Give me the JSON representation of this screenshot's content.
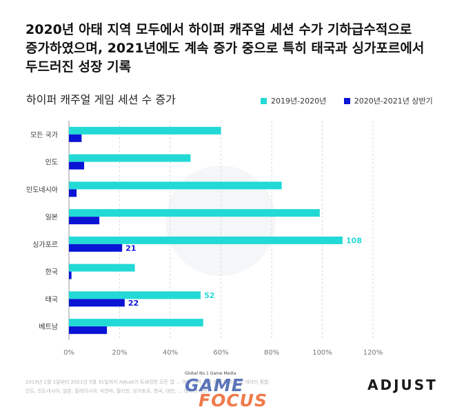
{
  "headline": {
    "line1": "2020년 아태 지역 모두에서 하이퍼 캐주얼 세션 수가 기하급수적으로",
    "line2": "증가하였으며, 2021년에도 계속 증가 중으로 특히 태국과 싱가포르에서",
    "line3": "두드러진 성장 기록"
  },
  "footnote": {
    "line1": "2019년 1월 1일부터 2021년 5월 31일까지 Adjust가 트래킹한 모든 앱 ... 아태 지역 기반 상위 910개 앱 데이터 종합.",
    "line2": "인도, 인도네시아, 일본, 말레이시아, 미얀마, 필리핀, 싱가포르, 한국, 대만, ... 데이터 기반."
  },
  "watermark": {
    "tagline": "Global No.1 Game Media",
    "word1": "GAME",
    "word2": "FOCUS"
  },
  "brand": "ADJUST",
  "colors": {
    "series1": "#22d9d6",
    "series2": "#0a14d4",
    "grid": "#d9d9d9",
    "axis": "#999999"
  },
  "chart_data": {
    "type": "bar",
    "orientation": "horizontal",
    "title": "하이퍼 캐주얼 게임 세션 수 증가",
    "categories": [
      "모든 국가",
      "인도",
      "인도네시아",
      "일본",
      "싱가포르",
      "한국",
      "태국",
      "베트남"
    ],
    "series": [
      {
        "name": "2019년-2020년",
        "values": [
          60,
          48,
          84,
          99,
          108,
          26,
          52,
          53
        ]
      },
      {
        "name": "2020년-2021년 상반기",
        "values": [
          5,
          6,
          3,
          12,
          21,
          1,
          22,
          15
        ]
      }
    ],
    "data_labels": [
      {
        "series": 0,
        "category": 4,
        "text": "108"
      },
      {
        "series": 1,
        "category": 4,
        "text": "21"
      },
      {
        "series": 0,
        "category": 6,
        "text": "52"
      },
      {
        "series": 1,
        "category": 6,
        "text": "22"
      }
    ],
    "x_ticks": [
      "0%",
      "20%",
      "40%",
      "60%",
      "80%",
      "100%",
      "120%"
    ],
    "xlim": [
      0,
      120
    ],
    "grid": true,
    "legend_position": "top-right"
  }
}
